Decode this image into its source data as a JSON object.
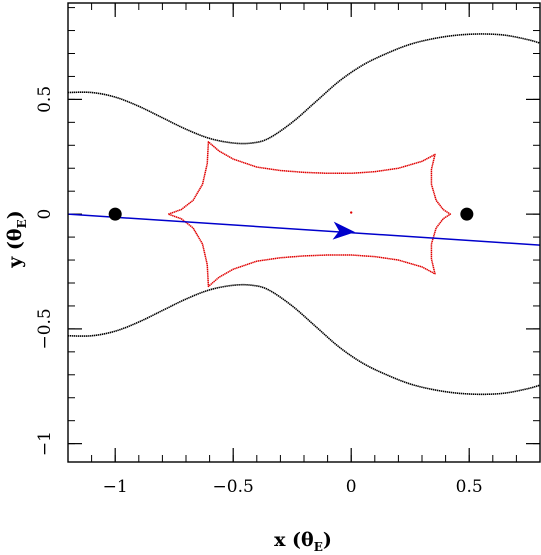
{
  "chart_data": {
    "type": "line",
    "xlabel": "x (θ",
    "xlabel_sub": "E",
    "ylabel": "y (θ",
    "ylabel_sub": "E",
    "label_close": ")",
    "xlim": [
      -1.2,
      0.8
    ],
    "ylim": [
      -1.08,
      0.92
    ],
    "x_ticks": [
      {
        "value": -1,
        "label": "−1"
      },
      {
        "value": -0.5,
        "label": "−0.5"
      },
      {
        "value": 0,
        "label": "0"
      },
      {
        "value": 0.5,
        "label": "0.5"
      }
    ],
    "y_ticks": [
      {
        "value": 0.5,
        "label": "0.5"
      },
      {
        "value": 0,
        "label": "0"
      },
      {
        "value": -0.5,
        "label": "−0.5"
      },
      {
        "value": -1,
        "label": "−1"
      }
    ],
    "x_minor_step": 0.1,
    "y_minor_step": 0.1,
    "grid": false,
    "critical_curve_upper": [
      [
        -1.2,
        0.53
      ],
      [
        -1.1,
        0.53
      ],
      [
        -1.0,
        0.51
      ],
      [
        -0.9,
        0.47
      ],
      [
        -0.8,
        0.42
      ],
      [
        -0.7,
        0.37
      ],
      [
        -0.6,
        0.33
      ],
      [
        -0.5,
        0.31
      ],
      [
        -0.42,
        0.31
      ],
      [
        -0.35,
        0.33
      ],
      [
        -0.25,
        0.4
      ],
      [
        -0.15,
        0.49
      ],
      [
        -0.05,
        0.58
      ],
      [
        0.05,
        0.65
      ],
      [
        0.15,
        0.7
      ],
      [
        0.25,
        0.74
      ],
      [
        0.35,
        0.765
      ],
      [
        0.45,
        0.78
      ],
      [
        0.55,
        0.785
      ],
      [
        0.65,
        0.78
      ],
      [
        0.75,
        0.76
      ],
      [
        0.8,
        0.745
      ]
    ],
    "critical_curve_lower": [
      [
        -1.2,
        -0.53
      ],
      [
        -1.1,
        -0.53
      ],
      [
        -1.0,
        -0.51
      ],
      [
        -0.9,
        -0.47
      ],
      [
        -0.8,
        -0.42
      ],
      [
        -0.7,
        -0.37
      ],
      [
        -0.6,
        -0.33
      ],
      [
        -0.5,
        -0.31
      ],
      [
        -0.42,
        -0.31
      ],
      [
        -0.35,
        -0.33
      ],
      [
        -0.25,
        -0.4
      ],
      [
        -0.15,
        -0.49
      ],
      [
        -0.05,
        -0.58
      ],
      [
        0.05,
        -0.65
      ],
      [
        0.15,
        -0.7
      ],
      [
        0.25,
        -0.74
      ],
      [
        0.35,
        -0.765
      ],
      [
        0.45,
        -0.78
      ],
      [
        0.55,
        -0.785
      ],
      [
        0.65,
        -0.78
      ],
      [
        0.75,
        -0.76
      ],
      [
        0.8,
        -0.745
      ]
    ],
    "caustic": [
      [
        -0.775,
        0.0
      ],
      [
        -0.72,
        0.02
      ],
      [
        -0.67,
        0.06
      ],
      [
        -0.63,
        0.13
      ],
      [
        -0.61,
        0.22
      ],
      [
        -0.605,
        0.315
      ],
      [
        -0.56,
        0.275
      ],
      [
        -0.5,
        0.24
      ],
      [
        -0.4,
        0.205
      ],
      [
        -0.3,
        0.19
      ],
      [
        -0.2,
        0.182
      ],
      [
        -0.1,
        0.178
      ],
      [
        0.0,
        0.178
      ],
      [
        0.1,
        0.185
      ],
      [
        0.2,
        0.2
      ],
      [
        0.3,
        0.23
      ],
      [
        0.355,
        0.26
      ],
      [
        0.34,
        0.195
      ],
      [
        0.34,
        0.13
      ],
      [
        0.36,
        0.06
      ],
      [
        0.39,
        0.02
      ],
      [
        0.42,
        0.0
      ],
      [
        0.39,
        -0.02
      ],
      [
        0.36,
        -0.06
      ],
      [
        0.34,
        -0.13
      ],
      [
        0.34,
        -0.195
      ],
      [
        0.355,
        -0.26
      ],
      [
        0.3,
        -0.23
      ],
      [
        0.2,
        -0.2
      ],
      [
        0.1,
        -0.185
      ],
      [
        0.0,
        -0.178
      ],
      [
        -0.1,
        -0.178
      ],
      [
        -0.2,
        -0.182
      ],
      [
        -0.3,
        -0.19
      ],
      [
        -0.4,
        -0.205
      ],
      [
        -0.5,
        -0.24
      ],
      [
        -0.56,
        -0.275
      ],
      [
        -0.605,
        -0.315
      ],
      [
        -0.61,
        -0.22
      ],
      [
        -0.63,
        -0.13
      ],
      [
        -0.67,
        -0.06
      ],
      [
        -0.72,
        -0.02
      ],
      [
        -0.775,
        0.0
      ]
    ],
    "source_trajectory": [
      [
        -1.2,
        0.0
      ],
      [
        0.8,
        -0.135
      ]
    ],
    "trajectory_arrow": {
      "x": -0.03,
      "y": -0.075
    },
    "lens_masses": [
      {
        "x": -1.0,
        "y": 0.0
      },
      {
        "x": 0.49,
        "y": 0.0
      }
    ],
    "center_marker": {
      "x": 0.0,
      "y": 0.007
    },
    "colors": {
      "critical_curve": "#000000",
      "caustic": "#e00000",
      "trajectory": "#0000cc",
      "lens": "#000000",
      "frame": "#000000"
    }
  }
}
